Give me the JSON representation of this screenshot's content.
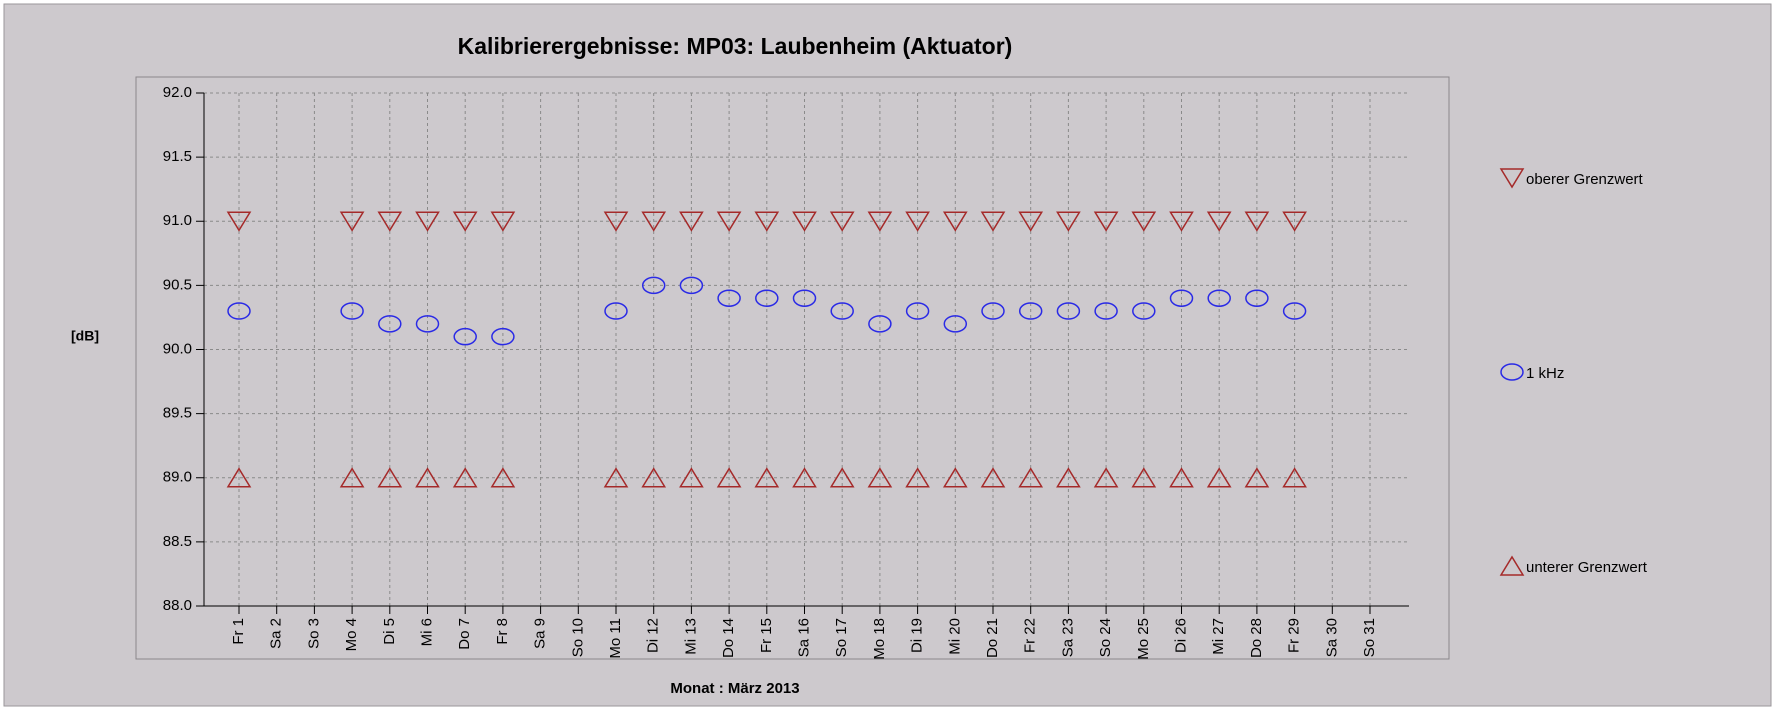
{
  "chart_data": {
    "type": "scatter",
    "title": "Kalibrierergebnisse: MP03: Laubenheim (Aktuator)",
    "y_label": "[dB]",
    "x_label": "Monat : März 2013",
    "categories": [
      "Fr 1",
      "Sa 2",
      "So 3",
      "Mo 4",
      "Di 5",
      "Mi 6",
      "Do 7",
      "Fr 8",
      "Sa 9",
      "So 10",
      "Mo 11",
      "Di 12",
      "Mi 13",
      "Do 14",
      "Fr 15",
      "Sa 16",
      "So 17",
      "Mo 18",
      "Di 19",
      "Mi 20",
      "Do 21",
      "Fr 22",
      "Sa 23",
      "So 24",
      "Mo 25",
      "Di 26",
      "Mi 27",
      "Do 28",
      "Fr 29",
      "Sa 30",
      "So 31"
    ],
    "series": [
      {
        "name": "oberer Grenzwert",
        "color": "#a52a2a",
        "marker": "triangle-down",
        "values": [
          91,
          null,
          null,
          91,
          91,
          91,
          91,
          91,
          null,
          null,
          91,
          91,
          91,
          91,
          91,
          91,
          91,
          91,
          91,
          91,
          91,
          91,
          91,
          91,
          91,
          91,
          91,
          91,
          91,
          null,
          null
        ]
      },
      {
        "name": "1 kHz",
        "color": "#2a2ae6",
        "marker": "circle",
        "values": [
          90.3,
          null,
          null,
          90.3,
          90.2,
          90.2,
          90.1,
          90.1,
          null,
          null,
          90.3,
          90.5,
          90.5,
          90.4,
          90.4,
          90.4,
          90.3,
          90.2,
          90.3,
          90.2,
          90.3,
          90.3,
          90.3,
          90.3,
          90.3,
          90.4,
          90.4,
          90.4,
          90.3,
          null,
          null
        ]
      },
      {
        "name": "unterer Grenzwert",
        "color": "#a52a2a",
        "marker": "triangle-up",
        "values": [
          89,
          null,
          null,
          89,
          89,
          89,
          89,
          89,
          null,
          null,
          89,
          89,
          89,
          89,
          89,
          89,
          89,
          89,
          89,
          89,
          89,
          89,
          89,
          89,
          89,
          89,
          89,
          89,
          89,
          null,
          null
        ]
      }
    ],
    "ylim": [
      88,
      92
    ],
    "yticks": [
      {
        "value": 88,
        "label": "88.0"
      },
      {
        "value": 88.5,
        "label": "88.5"
      },
      {
        "value": 89,
        "label": "89.0"
      },
      {
        "value": 89.5,
        "label": "89.5"
      },
      {
        "value": 90,
        "label": "90.0"
      },
      {
        "value": 90.5,
        "label": "90.5"
      },
      {
        "value": 91,
        "label": "91.0"
      },
      {
        "value": 91.5,
        "label": "91.5"
      },
      {
        "value": 92,
        "label": "92.0"
      }
    ],
    "grid": true
  }
}
